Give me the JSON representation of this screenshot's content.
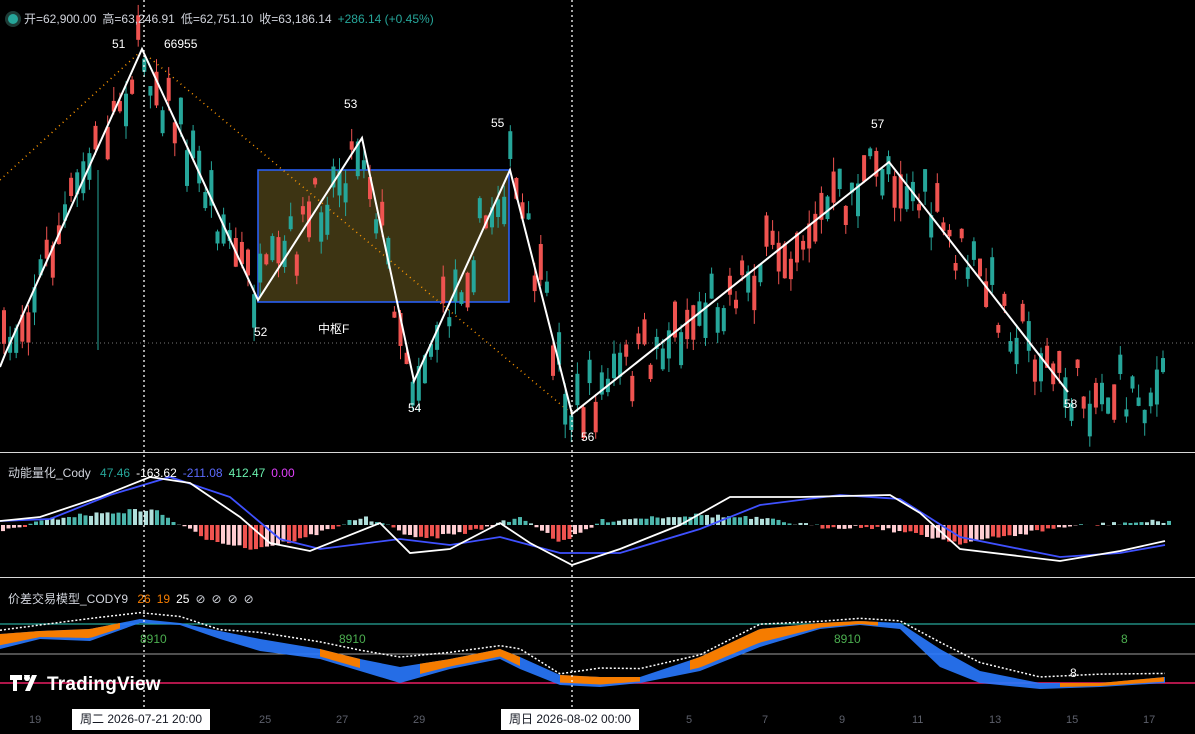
{
  "ohlc": {
    "open_label": "开=62,900.00",
    "high_label": "高=63,246.91",
    "low_label": "低=62,751.10",
    "close_label": "收=63,186.14",
    "change_label": "+286.14 (+0.45%)"
  },
  "wave_labels": [
    {
      "text": "51"
    },
    {
      "text": "66955"
    },
    {
      "text": "52"
    },
    {
      "text": "53"
    },
    {
      "text": "54"
    },
    {
      "text": "55"
    },
    {
      "text": "56"
    },
    {
      "text": "57"
    },
    {
      "text": "58"
    },
    {
      "text": "中枢F"
    }
  ],
  "osc": {
    "name": "动能量化_Cody",
    "v1": "47.46",
    "v2": "-163.62",
    "v3": "-211.08",
    "v4": "412.47",
    "v5": "0.00"
  },
  "model": {
    "name": "价差交易模型_CODY9",
    "v1": "26",
    "v2": "19",
    "v3": "25",
    "na1": "⊘",
    "na2": "⊘",
    "na3": "⊘",
    "na4": "⊘",
    "markers": [
      "8910",
      "8910",
      "8910",
      "8",
      "8"
    ]
  },
  "time_axis": {
    "ticks": [
      "19",
      "25",
      "27",
      "29",
      "5",
      "7",
      "9",
      "11",
      "13",
      "15",
      "17"
    ],
    "crosshair_1": "周二 2026-07-21   20:00",
    "crosshair_2": "周日 2026-08-02   00:00"
  },
  "branding": {
    "logo_text": "TradingView"
  },
  "colors": {
    "up": "#26a69a",
    "down": "#ef5350",
    "zone_fill": "#3d3413",
    "zone_border": "#2962ff",
    "wave": "#ffffff",
    "orange_dots": "#ff9800",
    "band_orange": "#f57c00",
    "band_blue": "#2979ff"
  }
}
